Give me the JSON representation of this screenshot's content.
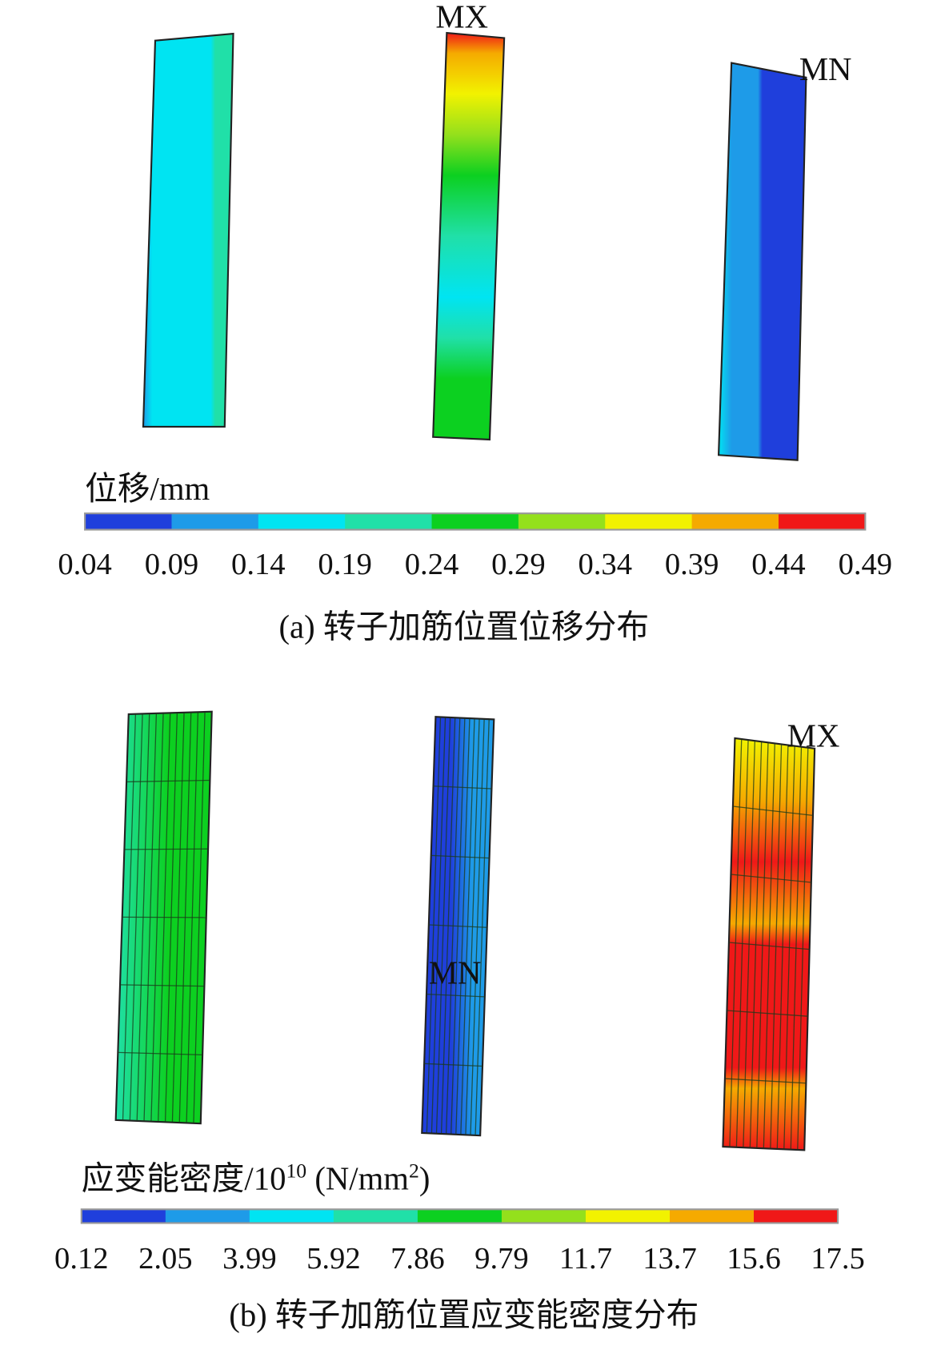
{
  "figure": {
    "panels": [
      {
        "labels": [
          "MX",
          "MN"
        ],
        "legend_title": "位移/mm",
        "colors": [
          "#1f3fdc",
          "#1e9be8",
          "#00e4f2",
          "#20e0a8",
          "#0cd020",
          "#94e01c",
          "#f2f200",
          "#f5aa00",
          "#f01818"
        ],
        "ticks": [
          "0.04",
          "0.09",
          "0.14",
          "0.19",
          "0.24",
          "0.29",
          "0.34",
          "0.39",
          "0.44",
          "0.49"
        ],
        "caption": "(a) 转子加筋位置位移分布"
      },
      {
        "labels": [
          "MN",
          "MX"
        ],
        "legend_title": {
          "text": "应变能密度/10",
          "sup": "10",
          "unit": " (N/mm",
          "unit_sup": "2",
          "close": ")"
        },
        "colors": [
          "#1f3fdc",
          "#1e9be8",
          "#00e4f2",
          "#20e0a8",
          "#0cd020",
          "#94e01c",
          "#f2f200",
          "#f5aa00",
          "#f01818"
        ],
        "ticks": [
          "0.12",
          "2.05",
          "3.99",
          "5.92",
          "7.86",
          "9.79",
          "11.7",
          "13.7",
          "15.6",
          "17.5"
        ],
        "caption": "(b) 转子加筋位置应变能密度分布"
      }
    ]
  }
}
